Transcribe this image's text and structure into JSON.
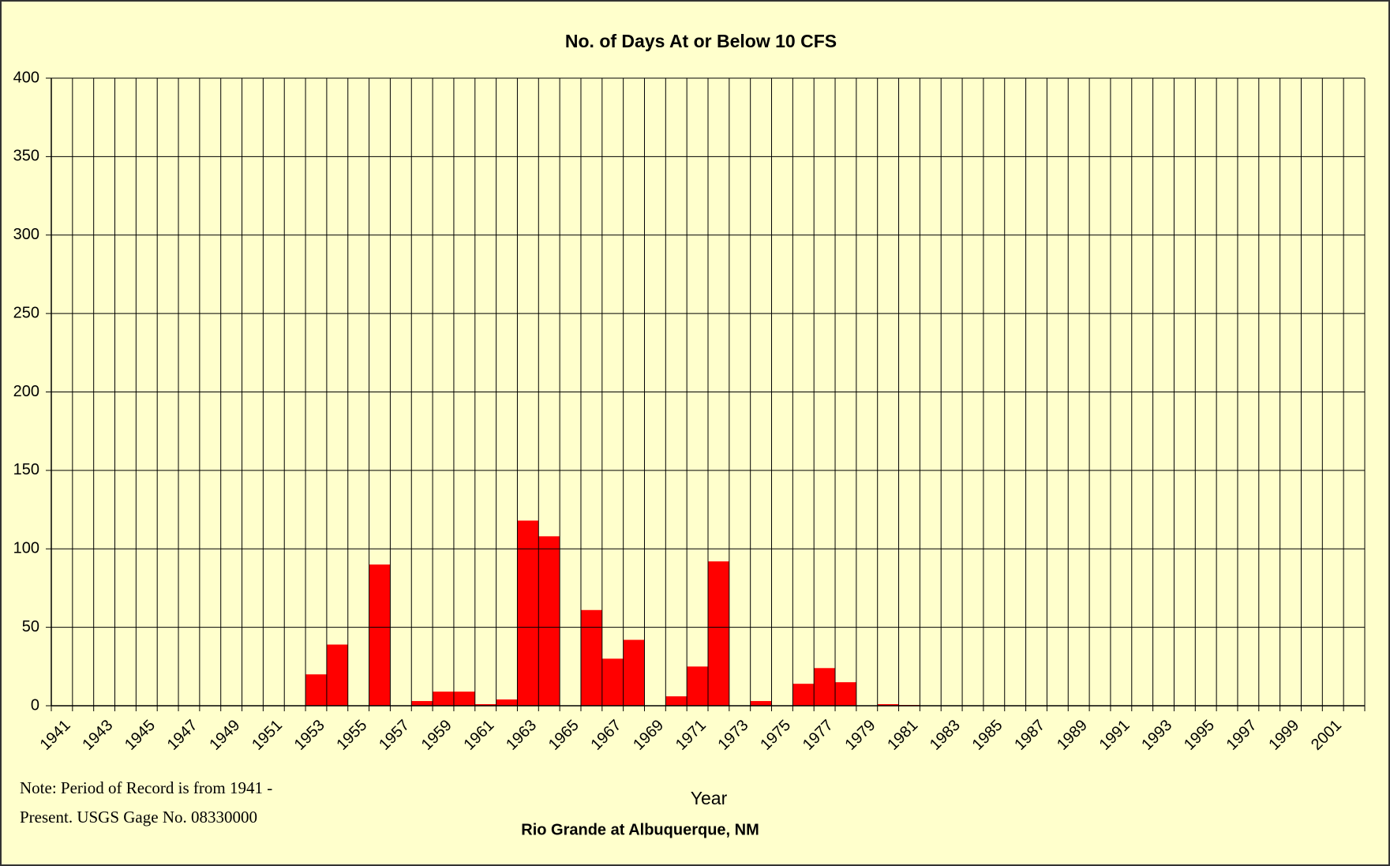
{
  "chart_data": {
    "type": "bar",
    "title": "No. of Days At or Below 10 CFS",
    "subtitle": "Rio Grande at Albuquerque, NM",
    "x_label": "Year",
    "notes": [
      "Note:  Period of Record is from 1941 -",
      "Present.  USGS Gage No. 08330000"
    ],
    "categories": [
      "1941",
      null,
      "1943",
      null,
      "1945",
      null,
      "1947",
      null,
      "1949",
      null,
      "1951",
      null,
      "1953",
      null,
      "1955",
      null,
      "1957",
      null,
      "1959",
      null,
      "1961",
      null,
      "1963",
      null,
      "1965",
      null,
      "1967",
      null,
      "1969",
      null,
      "1971",
      null,
      "1973",
      null,
      "1975",
      null,
      "1977",
      null,
      "1979",
      null,
      "1981",
      null,
      "1983",
      null,
      "1985",
      null,
      "1987",
      null,
      "1989",
      null,
      "1991",
      null,
      "1993",
      null,
      "1995",
      null,
      "1997",
      null,
      "1999",
      null,
      "2001",
      null
    ],
    "values": [
      0,
      0,
      0,
      0,
      0,
      0,
      0,
      0,
      0,
      0,
      0,
      0,
      20,
      39,
      0,
      90,
      0,
      3,
      9,
      9,
      1,
      4,
      118,
      108,
      0,
      61,
      30,
      42,
      0,
      6,
      25,
      92,
      0,
      3,
      0,
      14,
      24,
      15,
      0,
      1,
      0.5,
      0,
      0,
      0,
      0,
      0,
      0,
      0,
      0,
      0,
      0,
      0,
      0,
      0,
      0,
      0,
      0,
      0,
      0,
      0,
      0,
      0
    ],
    "color": "#ff0000",
    "ylim": [
      0,
      400
    ],
    "yticks": [
      0,
      50,
      100,
      150,
      200,
      250,
      300,
      350,
      400
    ],
    "grid": true,
    "background": "#ffffcc"
  }
}
